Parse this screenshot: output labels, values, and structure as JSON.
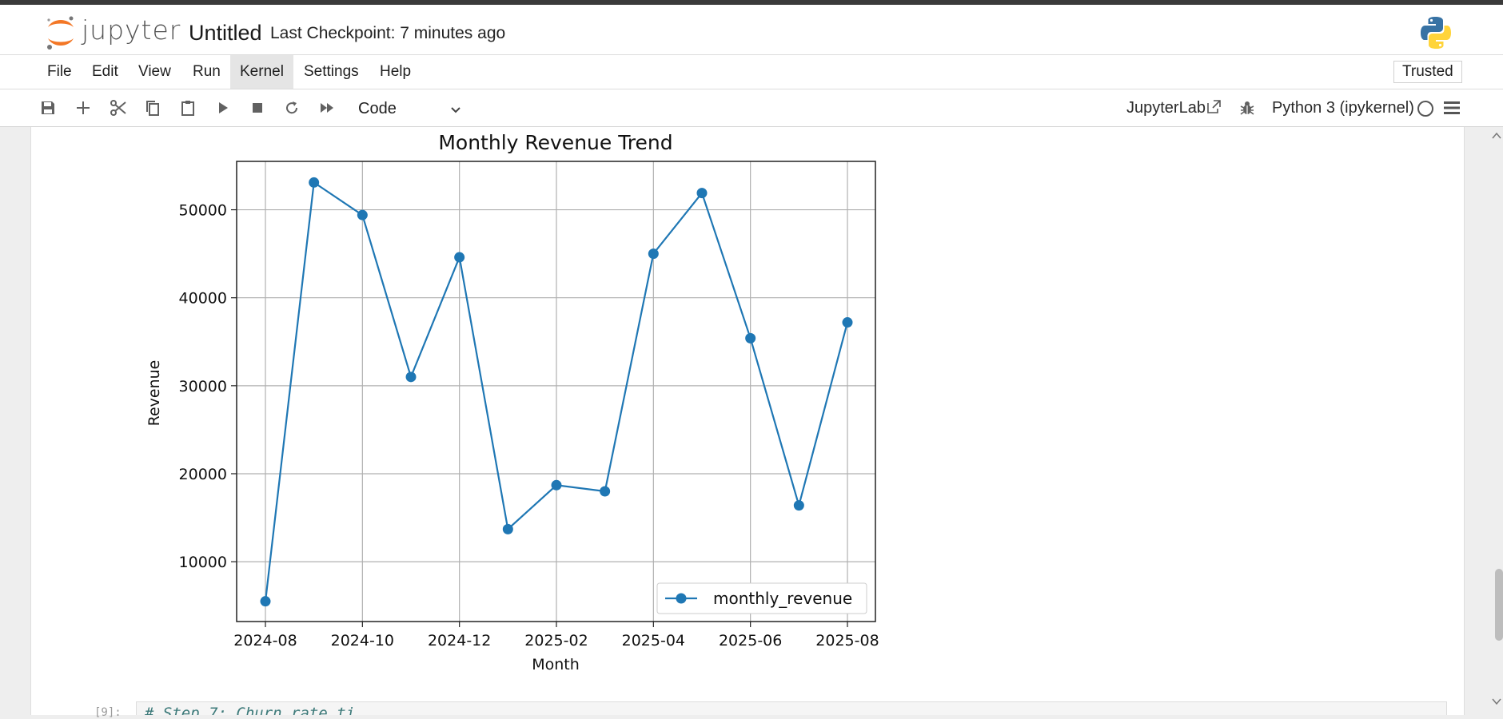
{
  "header": {
    "logo_text": "jupyter",
    "notebook_title": "Untitled",
    "checkpoint": "Last Checkpoint: 7 minutes ago"
  },
  "menu": {
    "items": [
      "File",
      "Edit",
      "View",
      "Run",
      "Kernel",
      "Settings",
      "Help"
    ],
    "active": "Kernel",
    "trusted_label": "Trusted"
  },
  "toolbar": {
    "cell_type": "Code",
    "jupyterlab_label": "JupyterLab",
    "kernel_name": "Python 3 (ipykernel)",
    "icons": [
      "save-icon",
      "add-icon",
      "cut-icon",
      "copy-icon",
      "paste-icon",
      "run-icon",
      "stop-icon",
      "restart-icon",
      "fast-forward-icon"
    ]
  },
  "next_cell": {
    "prompt": "[9]:",
    "code": "# Step 7: Churn rate ti..."
  },
  "chart_data": {
    "type": "line",
    "title": "Monthly Revenue Trend",
    "xlabel": "Month",
    "ylabel": "Revenue",
    "x": [
      "2024-08",
      "2024-09",
      "2024-10",
      "2024-11",
      "2024-12",
      "2025-01",
      "2025-02",
      "2025-03",
      "2025-04",
      "2025-05",
      "2025-06",
      "2025-07",
      "2025-08"
    ],
    "series": [
      {
        "name": "monthly_revenue",
        "values": [
          5500,
          53100,
          49400,
          31000,
          44600,
          13700,
          18700,
          18000,
          45000,
          51900,
          35400,
          16400,
          37200
        ]
      }
    ],
    "xticks": [
      "2024-08",
      "2024-10",
      "2024-12",
      "2025-02",
      "2025-04",
      "2025-06",
      "2025-08"
    ],
    "yticks": [
      10000,
      20000,
      30000,
      40000,
      50000
    ],
    "ylim": [
      3200,
      55500
    ],
    "grid": true,
    "legend": "bottom-right",
    "color": "#1f77b4"
  }
}
